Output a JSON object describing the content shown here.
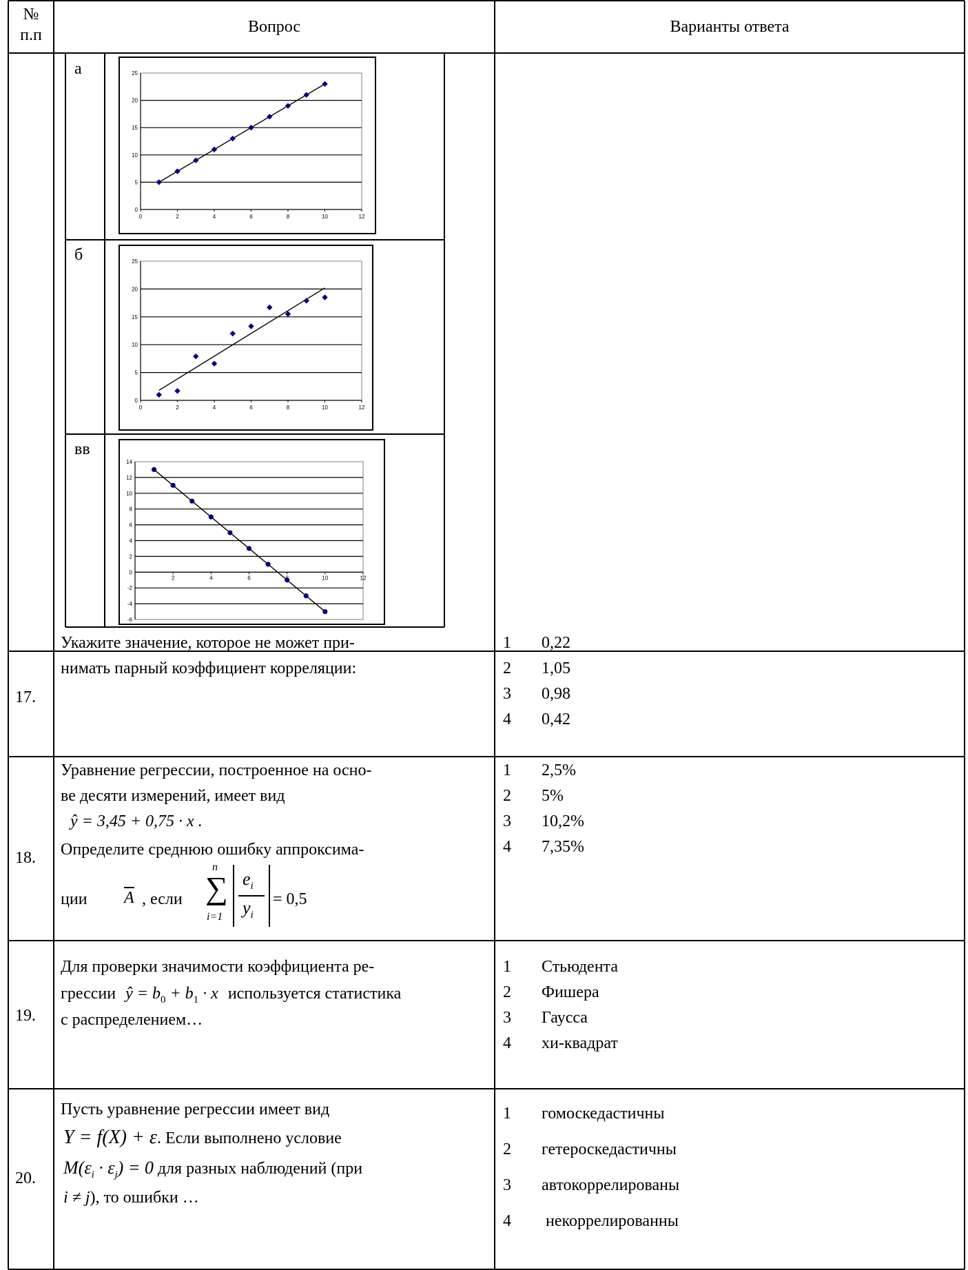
{
  "header": {
    "number": "№\nп.п",
    "number_l1": "№",
    "number_l2": "п.п",
    "question": "Вопрос",
    "answers": "Варианты ответа"
  },
  "charts_block": {
    "label_a": "а",
    "label_b": "б",
    "label_c": "вв"
  },
  "chart_data": [
    {
      "type": "scatter",
      "title": "",
      "xlabel": "",
      "ylabel": "",
      "xlim": [
        0,
        12
      ],
      "ylim": [
        0,
        25
      ],
      "xticks": [
        "0",
        "2",
        "4",
        "6",
        "8",
        "10",
        "12"
      ],
      "yticks": [
        "0",
        "5",
        "10",
        "15",
        "20",
        "25"
      ],
      "x": [
        1,
        2,
        3,
        4,
        5,
        6,
        7,
        8,
        9,
        10
      ],
      "y": [
        5,
        7,
        9,
        11,
        13,
        15,
        17,
        19,
        21,
        23
      ],
      "trendline": [
        [
          1,
          5
        ],
        [
          10,
          23
        ]
      ],
      "marker": "diamond",
      "color": "#000080"
    },
    {
      "type": "scatter",
      "title": "",
      "xlabel": "",
      "ylabel": "",
      "xlim": [
        0,
        12
      ],
      "ylim": [
        0,
        25
      ],
      "xticks": [
        "0",
        "2",
        "4",
        "6",
        "8",
        "10",
        "12"
      ],
      "yticks": [
        "0",
        "5",
        "10",
        "15",
        "20",
        "25"
      ],
      "x": [
        1,
        2,
        3,
        4,
        5,
        6,
        7,
        8,
        9,
        10
      ],
      "y": [
        1,
        1.7,
        7.9,
        6.6,
        12,
        13.3,
        16.7,
        15.5,
        17.9,
        18.5
      ],
      "trendline": [
        [
          1,
          1.8
        ],
        [
          10,
          20.2
        ]
      ],
      "marker": "diamond",
      "color": "#000080"
    },
    {
      "type": "scatter",
      "title": "",
      "xlabel": "",
      "ylabel": "",
      "xlim": [
        0,
        12
      ],
      "ylim": [
        -6,
        14
      ],
      "xticks": [
        "2",
        "4",
        "6",
        "8",
        "10",
        "12"
      ],
      "yticks": [
        "-6",
        "-4",
        "-2",
        "0",
        "2",
        "4",
        "6",
        "8",
        "10",
        "12",
        "14"
      ],
      "x": [
        1,
        2,
        3,
        4,
        5,
        6,
        7,
        8,
        9,
        10
      ],
      "y": [
        13,
        11,
        9,
        7,
        5,
        3,
        1,
        -1,
        -3,
        -5
      ],
      "trendline": [
        [
          1,
          13
        ],
        [
          10,
          -5
        ]
      ],
      "marker": "circle",
      "color": "#000080"
    }
  ],
  "rows": [
    {
      "number": "17.",
      "question": [
        "Укажите значение, которое не может при-",
        "нимать парный коэффициент корреляции:"
      ],
      "options": [
        {
          "n": "1",
          "text": "0,22"
        },
        {
          "n": "2",
          "text": "1,05"
        },
        {
          "n": "3",
          "text": "0,98"
        },
        {
          "n": "4",
          "text": "0,42"
        }
      ]
    },
    {
      "number": "18.",
      "question": [
        "Уравнение регрессии, построенное на осно-",
        "ве десяти  измерений, имеет вид",
        "ŷ = 3,45 + 0,75 · x .",
        "Определите среднюю ошибку аппроксима-",
        "ции",
        ", если",
        "= 0,5"
      ],
      "math": {
        "A": "A",
        "sum_top": "n",
        "sum_bottom": "i=1",
        "frac_num": "e",
        "frac_num_sub": "i",
        "frac_den": "y",
        "frac_den_sub": "i"
      },
      "options": [
        {
          "n": "1",
          "text": "2,5%"
        },
        {
          "n": "2",
          "text": "5%"
        },
        {
          "n": "3",
          "text": "10,2%"
        },
        {
          "n": "4",
          "text": "7,35%"
        }
      ]
    },
    {
      "number": "19.",
      "question": [
        "Для проверки значимости коэффициента ре-",
        "грессии",
        "ŷ = b",
        "0",
        " + b",
        "1",
        " · x",
        "используется статистика",
        "с распределением…"
      ],
      "options": [
        {
          "n": "1",
          "text": "Стьюдента"
        },
        {
          "n": "2",
          "text": "Фишера"
        },
        {
          "n": "3",
          "text": "Гаусса"
        },
        {
          "n": "4",
          "text": "хи-квадрат"
        }
      ]
    },
    {
      "number": "20.",
      "question": [
        "Пусть уравнение регрессии имеет вид",
        "Y = f(X) + ε",
        ". Если выполнено условие",
        "M(ε",
        "i",
        " · ε",
        "j",
        ") = 0",
        " для разных наблюдений (при",
        "i ≠ j",
        "), то ошибки …"
      ],
      "options": [
        {
          "n": "1",
          "text": "гомоскедастичны"
        },
        {
          "n": "2",
          "text": "гетероскедастичны"
        },
        {
          "n": "3",
          "text": "автокоррелированы"
        },
        {
          "n": "4",
          "text": " некоррелированны"
        }
      ]
    }
  ]
}
